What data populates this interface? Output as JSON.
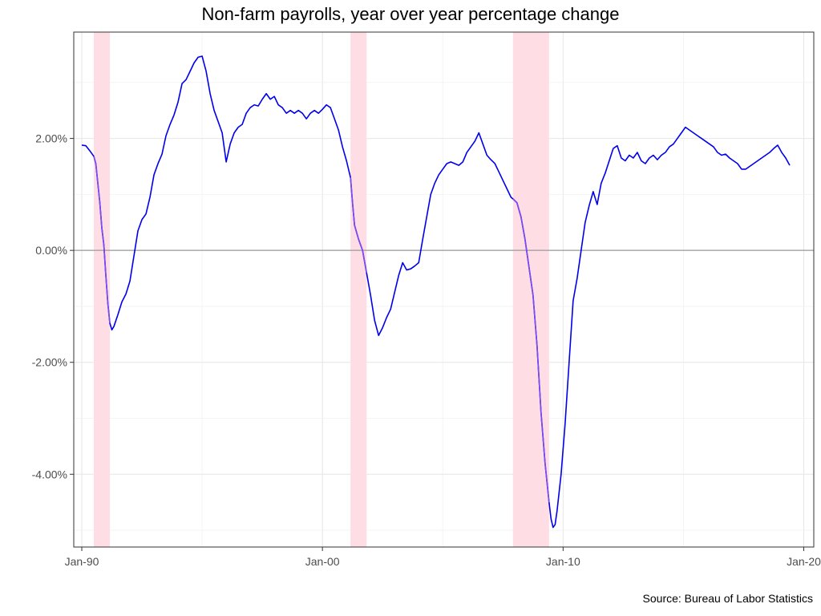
{
  "chart_data": {
    "type": "line",
    "title": "Non-farm payrolls, year over year percentage change",
    "caption": "Source: Bureau of Labor Statistics",
    "xlabel": "",
    "ylabel": "",
    "x_axis": {
      "type": "date",
      "range": [
        "1989-09",
        "2020-06"
      ],
      "ticks": [
        "1990-01",
        "2000-01",
        "2010-01",
        "2020-01"
      ],
      "tick_labels": [
        "Jan-90",
        "Jan-00",
        "Jan-10",
        "Jan-20"
      ]
    },
    "y_axis": {
      "format": "percent",
      "range": [
        -5.3,
        3.9
      ],
      "ticks": [
        -4,
        -2,
        0,
        2
      ],
      "tick_labels": [
        "-4.00%",
        "-2.00%",
        "0.00%",
        "2.00%"
      ]
    },
    "grid": true,
    "zero_line": true,
    "recessions": [
      {
        "start": "1990-07",
        "end": "1991-03"
      },
      {
        "start": "2001-03",
        "end": "2001-11"
      },
      {
        "start": "2007-12",
        "end": "2009-06"
      }
    ],
    "series": [
      {
        "line_color": "#0000ee",
        "recession_line_color": "#7b4cf2",
        "points": [
          [
            "1990-01",
            1.88
          ],
          [
            "1990-03",
            1.87
          ],
          [
            "1990-05",
            1.78
          ],
          [
            "1990-07",
            1.68
          ],
          [
            "1990-08",
            1.55
          ],
          [
            "1990-09",
            1.2
          ],
          [
            "1990-10",
            0.85
          ],
          [
            "1990-11",
            0.4
          ],
          [
            "1990-12",
            0.1
          ],
          [
            "1991-01",
            -0.45
          ],
          [
            "1991-02",
            -0.95
          ],
          [
            "1991-03",
            -1.3
          ],
          [
            "1991-04",
            -1.42
          ],
          [
            "1991-05",
            -1.36
          ],
          [
            "1991-07",
            -1.15
          ],
          [
            "1991-09",
            -0.92
          ],
          [
            "1991-11",
            -0.78
          ],
          [
            "1992-01",
            -0.55
          ],
          [
            "1992-03",
            -0.1
          ],
          [
            "1992-05",
            0.35
          ],
          [
            "1992-07",
            0.55
          ],
          [
            "1992-09",
            0.65
          ],
          [
            "1992-11",
            0.95
          ],
          [
            "1993-01",
            1.35
          ],
          [
            "1993-03",
            1.55
          ],
          [
            "1993-05",
            1.72
          ],
          [
            "1993-07",
            2.05
          ],
          [
            "1993-09",
            2.25
          ],
          [
            "1993-11",
            2.42
          ],
          [
            "1994-01",
            2.65
          ],
          [
            "1994-03",
            2.98
          ],
          [
            "1994-05",
            3.05
          ],
          [
            "1994-07",
            3.2
          ],
          [
            "1994-09",
            3.35
          ],
          [
            "1994-11",
            3.45
          ],
          [
            "1995-01",
            3.47
          ],
          [
            "1995-03",
            3.2
          ],
          [
            "1995-05",
            2.8
          ],
          [
            "1995-07",
            2.5
          ],
          [
            "1995-09",
            2.3
          ],
          [
            "1995-11",
            2.1
          ],
          [
            "1996-01",
            1.58
          ],
          [
            "1996-03",
            1.9
          ],
          [
            "1996-05",
            2.1
          ],
          [
            "1996-07",
            2.2
          ],
          [
            "1996-09",
            2.25
          ],
          [
            "1996-11",
            2.45
          ],
          [
            "1997-01",
            2.55
          ],
          [
            "1997-03",
            2.6
          ],
          [
            "1997-05",
            2.58
          ],
          [
            "1997-07",
            2.7
          ],
          [
            "1997-09",
            2.8
          ],
          [
            "1997-11",
            2.7
          ],
          [
            "1998-01",
            2.75
          ],
          [
            "1998-03",
            2.6
          ],
          [
            "1998-05",
            2.55
          ],
          [
            "1998-07",
            2.45
          ],
          [
            "1998-09",
            2.5
          ],
          [
            "1998-11",
            2.45
          ],
          [
            "1999-01",
            2.5
          ],
          [
            "1999-03",
            2.45
          ],
          [
            "1999-05",
            2.35
          ],
          [
            "1999-07",
            2.45
          ],
          [
            "1999-09",
            2.5
          ],
          [
            "1999-11",
            2.45
          ],
          [
            "2000-01",
            2.52
          ],
          [
            "2000-03",
            2.6
          ],
          [
            "2000-05",
            2.55
          ],
          [
            "2000-07",
            2.35
          ],
          [
            "2000-09",
            2.15
          ],
          [
            "2000-11",
            1.85
          ],
          [
            "2001-01",
            1.6
          ],
          [
            "2001-03",
            1.3
          ],
          [
            "2001-04",
            0.85
          ],
          [
            "2001-05",
            0.45
          ],
          [
            "2001-07",
            0.2
          ],
          [
            "2001-09",
            0.0
          ],
          [
            "2001-11",
            -0.4
          ],
          [
            "2002-01",
            -0.8
          ],
          [
            "2002-03",
            -1.25
          ],
          [
            "2002-05",
            -1.52
          ],
          [
            "2002-07",
            -1.38
          ],
          [
            "2002-09",
            -1.2
          ],
          [
            "2002-11",
            -1.05
          ],
          [
            "2003-01",
            -0.75
          ],
          [
            "2003-03",
            -0.45
          ],
          [
            "2003-05",
            -0.22
          ],
          [
            "2003-07",
            -0.35
          ],
          [
            "2003-09",
            -0.33
          ],
          [
            "2003-11",
            -0.28
          ],
          [
            "2004-01",
            -0.22
          ],
          [
            "2004-03",
            0.2
          ],
          [
            "2004-05",
            0.6
          ],
          [
            "2004-07",
            1.0
          ],
          [
            "2004-09",
            1.2
          ],
          [
            "2004-11",
            1.35
          ],
          [
            "2005-01",
            1.45
          ],
          [
            "2005-03",
            1.55
          ],
          [
            "2005-05",
            1.58
          ],
          [
            "2005-07",
            1.55
          ],
          [
            "2005-09",
            1.52
          ],
          [
            "2005-11",
            1.58
          ],
          [
            "2006-01",
            1.75
          ],
          [
            "2006-03",
            1.85
          ],
          [
            "2006-05",
            1.95
          ],
          [
            "2006-07",
            2.1
          ],
          [
            "2006-09",
            1.9
          ],
          [
            "2006-11",
            1.7
          ],
          [
            "2007-01",
            1.62
          ],
          [
            "2007-03",
            1.55
          ],
          [
            "2007-05",
            1.4
          ],
          [
            "2007-07",
            1.25
          ],
          [
            "2007-09",
            1.1
          ],
          [
            "2007-11",
            0.95
          ],
          [
            "2007-12",
            0.92
          ],
          [
            "2008-02",
            0.85
          ],
          [
            "2008-04",
            0.6
          ],
          [
            "2008-06",
            0.2
          ],
          [
            "2008-08",
            -0.3
          ],
          [
            "2008-10",
            -0.8
          ],
          [
            "2008-12",
            -1.7
          ],
          [
            "2009-02",
            -2.9
          ],
          [
            "2009-04",
            -3.8
          ],
          [
            "2009-06",
            -4.5
          ],
          [
            "2009-07",
            -4.8
          ],
          [
            "2009-08",
            -4.95
          ],
          [
            "2009-09",
            -4.9
          ],
          [
            "2009-10",
            -4.65
          ],
          [
            "2009-12",
            -4.0
          ],
          [
            "2010-02",
            -3.1
          ],
          [
            "2010-04",
            -2.0
          ],
          [
            "2010-06",
            -0.9
          ],
          [
            "2010-08",
            -0.5
          ],
          [
            "2010-10",
            0.0
          ],
          [
            "2010-12",
            0.5
          ],
          [
            "2011-02",
            0.8
          ],
          [
            "2011-04",
            1.05
          ],
          [
            "2011-06",
            0.82
          ],
          [
            "2011-08",
            1.2
          ],
          [
            "2011-10",
            1.38
          ],
          [
            "2011-12",
            1.6
          ],
          [
            "2012-02",
            1.82
          ],
          [
            "2012-04",
            1.87
          ],
          [
            "2012-06",
            1.65
          ],
          [
            "2012-08",
            1.6
          ],
          [
            "2012-10",
            1.7
          ],
          [
            "2012-12",
            1.65
          ],
          [
            "2013-02",
            1.75
          ],
          [
            "2013-04",
            1.6
          ],
          [
            "2013-06",
            1.55
          ],
          [
            "2013-08",
            1.65
          ],
          [
            "2013-10",
            1.7
          ],
          [
            "2013-12",
            1.62
          ],
          [
            "2014-02",
            1.7
          ],
          [
            "2014-04",
            1.75
          ],
          [
            "2014-06",
            1.85
          ],
          [
            "2014-08",
            1.9
          ],
          [
            "2014-10",
            2.0
          ],
          [
            "2014-12",
            2.1
          ],
          [
            "2015-02",
            2.2
          ],
          [
            "2015-04",
            2.15
          ],
          [
            "2015-06",
            2.1
          ],
          [
            "2015-08",
            2.05
          ],
          [
            "2015-10",
            2.0
          ],
          [
            "2015-12",
            1.95
          ],
          [
            "2016-02",
            1.9
          ],
          [
            "2016-04",
            1.85
          ],
          [
            "2016-06",
            1.75
          ],
          [
            "2016-08",
            1.7
          ],
          [
            "2016-10",
            1.72
          ],
          [
            "2016-12",
            1.65
          ],
          [
            "2017-02",
            1.6
          ],
          [
            "2017-04",
            1.55
          ],
          [
            "2017-06",
            1.45
          ],
          [
            "2017-08",
            1.45
          ],
          [
            "2017-10",
            1.5
          ],
          [
            "2017-12",
            1.55
          ],
          [
            "2018-02",
            1.6
          ],
          [
            "2018-04",
            1.65
          ],
          [
            "2018-06",
            1.7
          ],
          [
            "2018-08",
            1.75
          ],
          [
            "2018-10",
            1.82
          ],
          [
            "2018-12",
            1.88
          ],
          [
            "2019-02",
            1.75
          ],
          [
            "2019-04",
            1.65
          ],
          [
            "2019-06",
            1.52
          ]
        ]
      }
    ]
  }
}
